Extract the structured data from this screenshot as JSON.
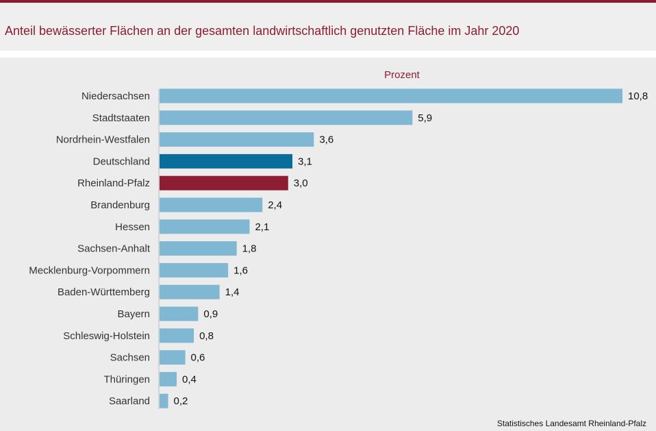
{
  "title": "Anteil bewässerter Flächen an der gesamten landwirtschaftlich genutzten Fläche im Jahr 2020",
  "source": "Statistisches Landesamt  Rheinland-Pfalz",
  "colors": {
    "brand": "#8c1d32",
    "bar_default": "#80b7d3",
    "bar_deutschland": "#0a6e9c",
    "bar_rheinland_pfalz": "#8c1d32"
  },
  "chart_data": {
    "type": "bar",
    "orientation": "horizontal",
    "unit_label": "Prozent",
    "categories": [
      "Niedersachsen",
      "Stadtstaaten",
      "Nordrhein-Westfalen",
      "Deutschland",
      "Rheinland-Pfalz",
      "Brandenburg",
      "Hessen",
      "Sachsen-Anhalt",
      "Mecklenburg-Vorpommern",
      "Baden-Württemberg",
      "Bayern",
      "Schleswig-Holstein",
      "Sachsen",
      "Thüringen",
      "Saarland"
    ],
    "values": [
      10.8,
      5.9,
      3.6,
      3.1,
      3.0,
      2.4,
      2.1,
      1.8,
      1.6,
      1.4,
      0.9,
      0.8,
      0.6,
      0.4,
      0.2
    ],
    "value_labels": [
      "10,8",
      "5,9",
      "3,6",
      "3,1",
      "3,0",
      "2,4",
      "2,1",
      "1,8",
      "1,6",
      "1,4",
      "0,9",
      "0,8",
      "0,6",
      "0,4",
      "0,2"
    ],
    "highlight": {
      "Deutschland": "#0a6e9c",
      "Rheinland-Pfalz": "#8c1d32"
    },
    "xlim": [
      0,
      10.8
    ],
    "grid": false,
    "legend": "none"
  }
}
